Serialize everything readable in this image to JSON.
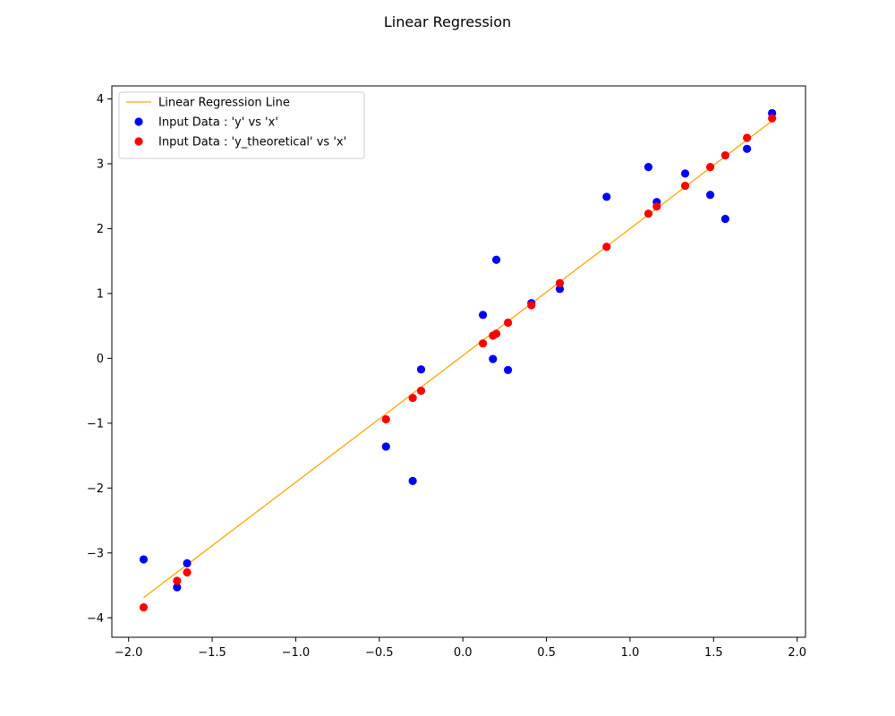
{
  "figure": {
    "title": "Linear Regression"
  },
  "chart_data": {
    "type": "scatter",
    "title": "Linear Regression",
    "xlabel": "",
    "ylabel": "",
    "xlim": [
      -2.1,
      2.05
    ],
    "ylim": [
      -4.3,
      4.2
    ],
    "x_ticks": [
      -2.0,
      -1.5,
      -1.0,
      -0.5,
      0.0,
      0.5,
      1.0,
      1.5,
      2.0
    ],
    "x_tick_labels": [
      "−2.0",
      "−1.5",
      "−1.0",
      "−0.5",
      "0.0",
      "0.5",
      "1.0",
      "1.5",
      "2.0"
    ],
    "y_ticks": [
      -4,
      -3,
      -2,
      -1,
      0,
      1,
      2,
      3,
      4
    ],
    "y_tick_labels": [
      "−4",
      "−3",
      "−2",
      "−1",
      "0",
      "1",
      "2",
      "3",
      "4"
    ],
    "grid": false,
    "legend_position": "top-left",
    "series": [
      {
        "name": "Linear Regression Line",
        "kind": "line",
        "color": "#ffa500",
        "points": [
          [
            -1.91,
            -3.69
          ],
          [
            1.85,
            3.66
          ]
        ]
      },
      {
        "name": "Input Data : 'y' vs 'x'",
        "kind": "scatter",
        "color": "#0000ff",
        "points": [
          [
            -1.91,
            -3.1
          ],
          [
            -1.71,
            -3.53
          ],
          [
            -1.65,
            -3.16
          ],
          [
            -0.46,
            -1.36
          ],
          [
            -0.3,
            -1.89
          ],
          [
            -0.25,
            -0.17
          ],
          [
            0.12,
            0.67
          ],
          [
            0.18,
            -0.01
          ],
          [
            0.2,
            1.52
          ],
          [
            0.27,
            -0.18
          ],
          [
            0.41,
            0.85
          ],
          [
            0.58,
            1.07
          ],
          [
            0.86,
            2.49
          ],
          [
            1.11,
            2.95
          ],
          [
            1.16,
            2.41
          ],
          [
            1.33,
            2.85
          ],
          [
            1.48,
            2.52
          ],
          [
            1.57,
            2.15
          ],
          [
            1.7,
            3.23
          ],
          [
            1.85,
            3.78
          ]
        ]
      },
      {
        "name": "Input Data : 'y_theoretical' vs 'x'",
        "kind": "scatter",
        "color": "#ff0000",
        "points": [
          [
            -1.91,
            -3.84
          ],
          [
            -1.71,
            -3.43
          ],
          [
            -1.65,
            -3.3
          ],
          [
            -0.46,
            -0.94
          ],
          [
            -0.3,
            -0.61
          ],
          [
            -0.25,
            -0.5
          ],
          [
            0.12,
            0.23
          ],
          [
            0.18,
            0.35
          ],
          [
            0.2,
            0.38
          ],
          [
            0.27,
            0.55
          ],
          [
            0.41,
            0.82
          ],
          [
            0.58,
            1.16
          ],
          [
            0.86,
            1.72
          ],
          [
            1.11,
            2.23
          ],
          [
            1.16,
            2.34
          ],
          [
            1.33,
            2.66
          ],
          [
            1.48,
            2.95
          ],
          [
            1.57,
            3.13
          ],
          [
            1.7,
            3.4
          ],
          [
            1.85,
            3.7
          ]
        ]
      }
    ]
  }
}
